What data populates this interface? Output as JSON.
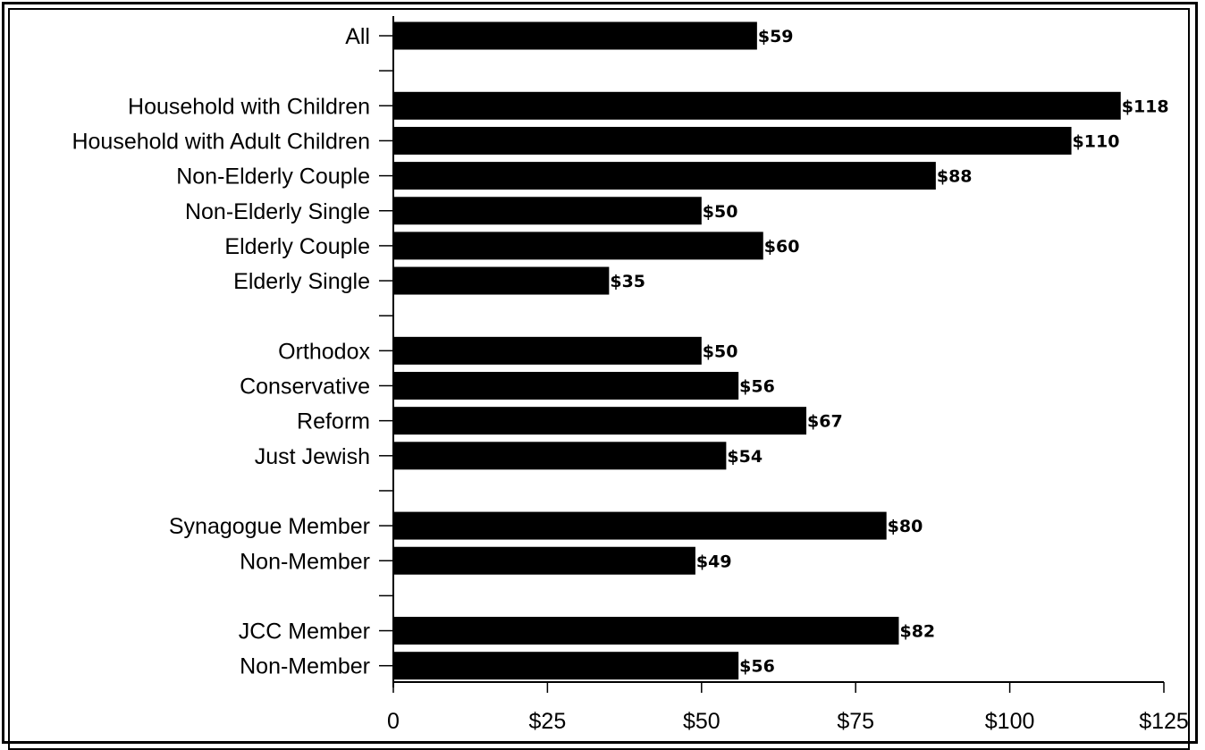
{
  "chart_data": {
    "type": "bar",
    "orientation": "horizontal",
    "title": "",
    "xlabel": "",
    "ylabel": "",
    "xlim": [
      0,
      125
    ],
    "x_ticks": [
      0,
      25,
      50,
      75,
      100,
      125
    ],
    "x_tick_labels": [
      "0",
      "$25",
      "$50",
      "$75",
      "$100",
      "$125"
    ],
    "grid": false,
    "rows": [
      {
        "label": "All",
        "value": 59,
        "value_label": "$59"
      },
      {
        "label": "",
        "value": null,
        "value_label": ""
      },
      {
        "label": "Household with Children",
        "value": 118,
        "value_label": "$118"
      },
      {
        "label": "Household with Adult Children",
        "value": 110,
        "value_label": "$110"
      },
      {
        "label": "Non-Elderly Couple",
        "value": 88,
        "value_label": "$88"
      },
      {
        "label": "Non-Elderly Single",
        "value": 50,
        "value_label": "$50"
      },
      {
        "label": "Elderly Couple",
        "value": 60,
        "value_label": "$60"
      },
      {
        "label": "Elderly Single",
        "value": 35,
        "value_label": "$35"
      },
      {
        "label": "",
        "value": null,
        "value_label": ""
      },
      {
        "label": "Orthodox",
        "value": 50,
        "value_label": "$50"
      },
      {
        "label": "Conservative",
        "value": 56,
        "value_label": "$56"
      },
      {
        "label": "Reform",
        "value": 67,
        "value_label": "$67"
      },
      {
        "label": "Just Jewish",
        "value": 54,
        "value_label": "$54"
      },
      {
        "label": "",
        "value": null,
        "value_label": ""
      },
      {
        "label": "Synagogue Member",
        "value": 80,
        "value_label": "$80"
      },
      {
        "label": "Non-Member",
        "value": 49,
        "value_label": "$49"
      },
      {
        "label": "",
        "value": null,
        "value_label": ""
      },
      {
        "label": "JCC Member",
        "value": 82,
        "value_label": "$82"
      },
      {
        "label": "Non-Member",
        "value": 56,
        "value_label": "$56"
      }
    ],
    "colors": {
      "bar": "#000000",
      "axis": "#000000"
    }
  }
}
